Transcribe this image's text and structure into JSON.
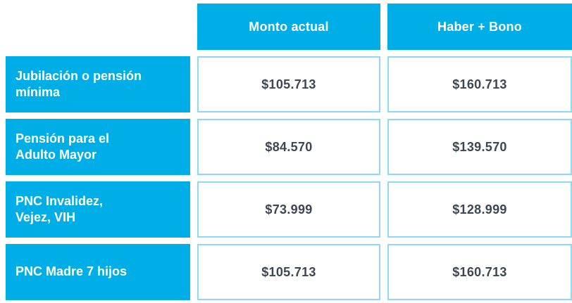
{
  "colors": {
    "accent": "#00AEE7",
    "cell_border": "#8FD9F7",
    "value_text": "#3E4553",
    "header_text": "#FFFFFF"
  },
  "table": {
    "columns": [
      {
        "label": "Monto actual"
      },
      {
        "label": "Haber + Bono"
      }
    ],
    "rows": [
      {
        "label": "Jubilación o pensión\nmínima",
        "monto_actual": "$105.713",
        "haber_bono": "$160.713"
      },
      {
        "label": "Pensión para el\nAdulto Mayor",
        "monto_actual": "$84.570",
        "haber_bono": "$139.570"
      },
      {
        "label": "PNC Invalidez,\nVejez, VIH",
        "monto_actual": "$73.999",
        "haber_bono": "$128.999"
      },
      {
        "label": "PNC Madre 7 hijos",
        "monto_actual": "$105.713",
        "haber_bono": "$160.713"
      }
    ]
  },
  "chart_data": {
    "type": "table",
    "columns": [
      "",
      "Monto actual",
      "Haber + Bono"
    ],
    "rows": [
      [
        "Jubilación o pensión mínima",
        "$105.713",
        "$160.713"
      ],
      [
        "Pensión para el Adulto Mayor",
        "$84.570",
        "$139.570"
      ],
      [
        "PNC Invalidez, Vejez, VIH",
        "$73.999",
        "$128.999"
      ],
      [
        "PNC Madre 7 hijos",
        "$105.713",
        "$160.713"
      ]
    ],
    "series": [
      {
        "name": "Monto actual",
        "values": [
          105713,
          84570,
          73999,
          105713
        ]
      },
      {
        "name": "Haber + Bono",
        "values": [
          160713,
          139570,
          128999,
          160713
        ]
      }
    ],
    "categories": [
      "Jubilación o pensión mínima",
      "Pensión para el Adulto Mayor",
      "PNC Invalidez, Vejez, VIH",
      "PNC Madre 7 hijos"
    ],
    "currency": "ARS",
    "layout": {
      "grid": false,
      "header_position": "top",
      "label_column_position": "left"
    }
  }
}
